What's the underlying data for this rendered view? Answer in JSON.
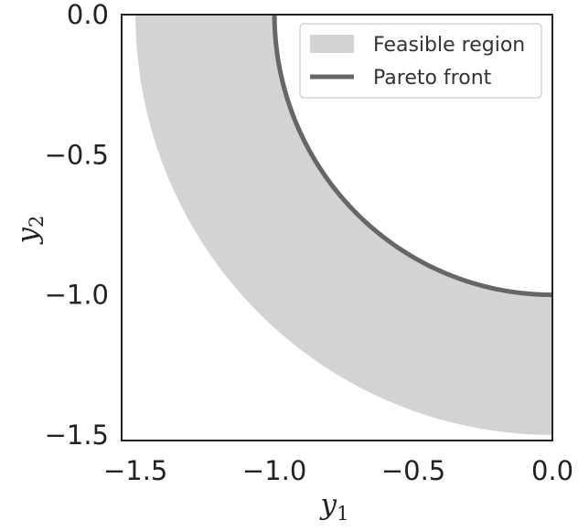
{
  "chart_data": {
    "type": "area",
    "title": "",
    "xlabel": {
      "main": "y",
      "sub": "1"
    },
    "ylabel": {
      "main": "y",
      "sub": "2"
    },
    "xlim": [
      -1.55,
      0.0
    ],
    "ylim": [
      -1.52,
      0.0
    ],
    "xticks": [
      -1.5,
      -1.0,
      -0.5,
      0.0
    ],
    "yticks": [
      0.0,
      -0.5,
      -1.0,
      -1.5
    ],
    "xtick_labels": [
      "−1.5",
      "−1.0",
      "−0.5",
      "0.0"
    ],
    "ytick_labels": [
      "0.0",
      "−0.5",
      "−1.0",
      "−1.5"
    ],
    "grid": false,
    "legend_position": "top-right",
    "series": [
      {
        "name": "Feasible region",
        "kind": "band",
        "inner_radius": 1.0,
        "outer_radius": 1.5,
        "center": [
          0,
          0
        ],
        "color": "#d3d3d3"
      },
      {
        "name": "Pareto front",
        "kind": "line",
        "radius": 1.0,
        "center": [
          0,
          0
        ],
        "color": "#666666"
      }
    ]
  }
}
